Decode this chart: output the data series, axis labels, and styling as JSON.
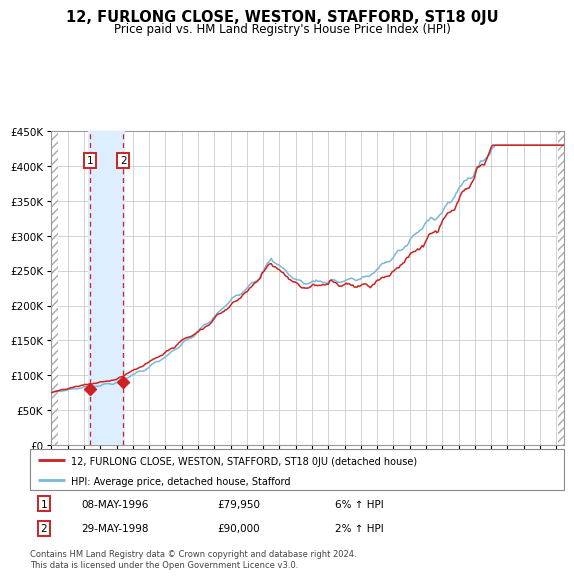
{
  "title": "12, FURLONG CLOSE, WESTON, STAFFORD, ST18 0JU",
  "subtitle": "Price paid vs. HM Land Registry's House Price Index (HPI)",
  "legend_line1": "12, FURLONG CLOSE, WESTON, STAFFORD, ST18 0JU (detached house)",
  "legend_line2": "HPI: Average price, detached house, Stafford",
  "transaction1_date": "08-MAY-1996",
  "transaction1_price": "£79,950",
  "transaction1_hpi": "6% ↑ HPI",
  "transaction2_date": "29-MAY-1998",
  "transaction2_price": "£90,000",
  "transaction2_hpi": "2% ↑ HPI",
  "footnote": "Contains HM Land Registry data © Crown copyright and database right 2024.\nThis data is licensed under the Open Government Licence v3.0.",
  "xmin": 1994.0,
  "xmax": 2025.5,
  "ymin": 0,
  "ymax": 450000,
  "hpi_color": "#7ab8d9",
  "price_color": "#cc2222",
  "marker_color": "#cc2222",
  "grid_color": "#cccccc",
  "highlight_color": "#ddeeff",
  "t1_x": 1996.36,
  "t1_y": 79950,
  "t2_x": 1998.41,
  "t2_y": 90000,
  "yticks": [
    0,
    50000,
    100000,
    150000,
    200000,
    250000,
    300000,
    350000,
    400000,
    450000
  ]
}
